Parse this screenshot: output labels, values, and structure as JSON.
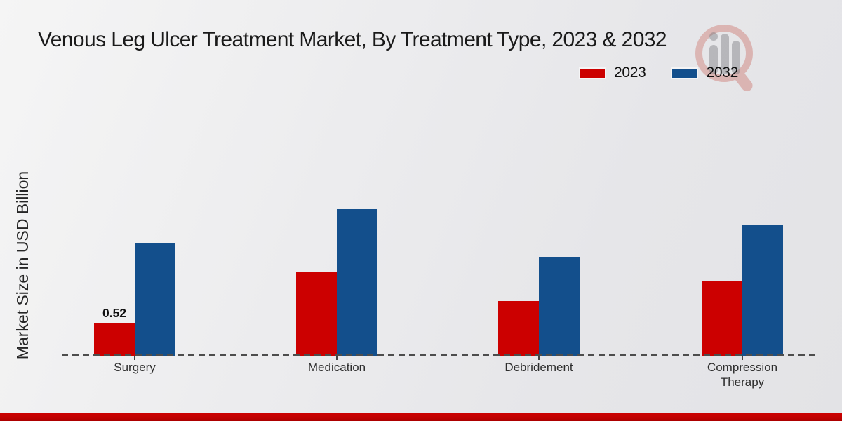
{
  "chart_data": {
    "type": "bar",
    "title": "Venous Leg Ulcer Treatment Market, By Treatment Type, 2023 & 2032",
    "xlabel": "",
    "ylabel": "Market Size in USD Billion",
    "categories": [
      "Surgery",
      "Medication",
      "Debridement",
      "Compression Therapy"
    ],
    "series": [
      {
        "name": "2023",
        "color": "#CC0000",
        "values": [
          0.52,
          1.36,
          0.88,
          1.2
        ]
      },
      {
        "name": "2032",
        "color": "#134F8C",
        "values": [
          1.82,
          2.36,
          1.59,
          2.1
        ]
      }
    ],
    "data_labels": [
      {
        "category": "Surgery",
        "series": "2023",
        "text": "0.52"
      }
    ],
    "ylim": [
      0,
      2.6
    ],
    "grid": false,
    "legend_position": "top-right",
    "baseline_style": "dashed",
    "y_axis_ticks_visible": false
  },
  "watermark": {
    "icon": "market-research-logo",
    "ring_color": "#c0392b",
    "bars_color": "#77777c"
  },
  "footer": {
    "accent_bar_color": "#c20101"
  }
}
